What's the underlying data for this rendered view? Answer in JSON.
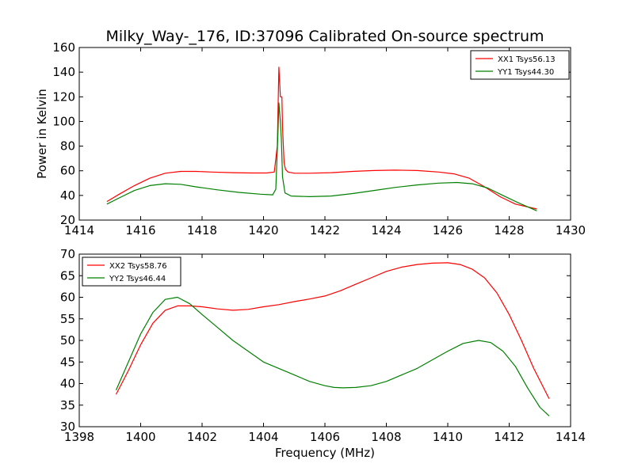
{
  "chart_data": [
    {
      "type": "line",
      "title": "Milky_Way-_176, ID:37096 Calibrated On-source spectrum",
      "xlabel": "",
      "ylabel": "Power in Kelvin",
      "xlim": [
        1414,
        1430
      ],
      "ylim": [
        20,
        160
      ],
      "xticks": [
        "1414",
        "1416",
        "1418",
        "1420",
        "1422",
        "1424",
        "1426",
        "1428",
        "1430"
      ],
      "yticks": [
        "20",
        "40",
        "60",
        "80",
        "100",
        "120",
        "140",
        "160"
      ],
      "legend_position": "upper-right",
      "grid": false,
      "series": [
        {
          "name": "XX1 Tsys56.13",
          "color": "#ff0000",
          "x": [
            1414.9,
            1415.3,
            1415.8,
            1416.3,
            1416.8,
            1417.3,
            1417.8,
            1418.3,
            1419.0,
            1419.6,
            1420.1,
            1420.35,
            1420.45,
            1420.5,
            1420.55,
            1420.6,
            1420.62,
            1420.67,
            1420.72,
            1420.8,
            1421.0,
            1421.5,
            1422.2,
            1422.9,
            1423.6,
            1424.3,
            1425.0,
            1425.7,
            1426.2,
            1426.7,
            1427.2,
            1427.7,
            1428.2,
            1428.9
          ],
          "y": [
            35,
            41,
            48,
            54,
            58,
            59.5,
            59.5,
            59,
            58.5,
            58.2,
            58.2,
            59,
            80,
            144,
            120,
            120,
            95,
            66,
            61,
            59,
            58,
            58,
            58.5,
            59.5,
            60.2,
            60.5,
            60.2,
            59,
            57.5,
            54,
            47,
            39,
            33,
            29
          ]
        },
        {
          "name": "YY1 Tsys44.30",
          "color": "#008000",
          "x": [
            1414.9,
            1415.3,
            1415.8,
            1416.3,
            1416.8,
            1417.3,
            1417.8,
            1418.5,
            1419.2,
            1419.9,
            1420.3,
            1420.4,
            1420.47,
            1420.5,
            1420.55,
            1420.58,
            1420.62,
            1420.7,
            1420.9,
            1421.5,
            1422.2,
            1422.9,
            1423.6,
            1424.3,
            1425.0,
            1425.7,
            1426.3,
            1426.8,
            1427.3,
            1427.8,
            1428.3,
            1428.9
          ],
          "y": [
            33,
            38,
            44,
            48,
            49.5,
            49,
            47,
            44.5,
            42.5,
            41,
            40.5,
            45,
            90,
            115,
            100,
            86,
            55,
            42,
            39.5,
            39,
            39.5,
            41.5,
            44,
            46.5,
            48.5,
            50,
            50.5,
            49.5,
            46,
            40,
            34,
            27.5
          ]
        }
      ]
    },
    {
      "type": "line",
      "title": "",
      "xlabel": "Frequency (MHz)",
      "ylabel": "",
      "xlim": [
        1398,
        1414
      ],
      "ylim": [
        30,
        70
      ],
      "xticks": [
        "1398",
        "1400",
        "1402",
        "1404",
        "1406",
        "1408",
        "1410",
        "1412",
        "1414"
      ],
      "yticks": [
        "30",
        "35",
        "40",
        "45",
        "50",
        "55",
        "60",
        "65",
        "70"
      ],
      "legend_position": "upper-left",
      "grid": false,
      "series": [
        {
          "name": "XX2 Tsys58.76",
          "color": "#ff0000",
          "x": [
            1399.2,
            1399.6,
            1400.0,
            1400.4,
            1400.8,
            1401.2,
            1401.6,
            1402.0,
            1402.5,
            1403.0,
            1403.5,
            1404.0,
            1404.5,
            1405.0,
            1405.5,
            1406.0,
            1406.5,
            1407.0,
            1407.5,
            1408.0,
            1408.5,
            1409.0,
            1409.5,
            1410.0,
            1410.4,
            1410.8,
            1411.2,
            1411.6,
            1412.0,
            1412.4,
            1412.8,
            1413.3
          ],
          "y": [
            37.5,
            43,
            49,
            54,
            57,
            58,
            58,
            57.8,
            57.3,
            57,
            57.2,
            57.8,
            58.3,
            59,
            59.6,
            60.3,
            61.5,
            63,
            64.5,
            66,
            67,
            67.6,
            67.9,
            68,
            67.6,
            66.5,
            64.5,
            61,
            56,
            50,
            43.5,
            36.5
          ]
        },
        {
          "name": "YY2 Tsys46.44",
          "color": "#008000",
          "x": [
            1399.2,
            1399.6,
            1400.0,
            1400.4,
            1400.8,
            1401.2,
            1401.6,
            1402.0,
            1402.5,
            1403.0,
            1403.5,
            1404.0,
            1404.5,
            1405.0,
            1405.5,
            1406.0,
            1406.3,
            1406.6,
            1407.0,
            1407.5,
            1408.0,
            1408.5,
            1409.0,
            1409.5,
            1410.0,
            1410.5,
            1411.0,
            1411.4,
            1411.8,
            1412.2,
            1412.6,
            1413.0,
            1413.3
          ],
          "y": [
            38.5,
            45,
            51.5,
            56.5,
            59.5,
            60,
            58.5,
            56,
            53,
            50,
            47.5,
            45,
            43.5,
            42,
            40.5,
            39.5,
            39.1,
            39,
            39.1,
            39.5,
            40.5,
            42,
            43.5,
            45.5,
            47.5,
            49.3,
            50,
            49.5,
            47.5,
            44,
            39,
            34.5,
            32.5
          ]
        }
      ]
    }
  ]
}
